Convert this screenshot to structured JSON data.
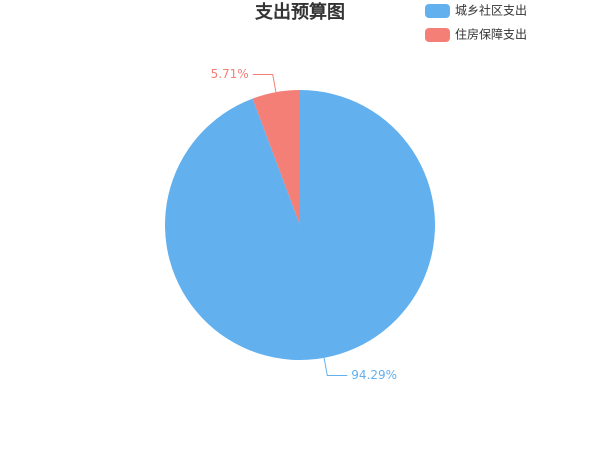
{
  "chart_data": {
    "type": "pie",
    "title": "支出预算图",
    "categories": [
      "城乡社区支出",
      "住房保障支出"
    ],
    "values": [
      94.29,
      5.71
    ],
    "value_labels": [
      "94.29%",
      "5.71%"
    ],
    "colors": [
      "#62b0ee",
      "#f47f77"
    ],
    "legend": "top-right"
  }
}
